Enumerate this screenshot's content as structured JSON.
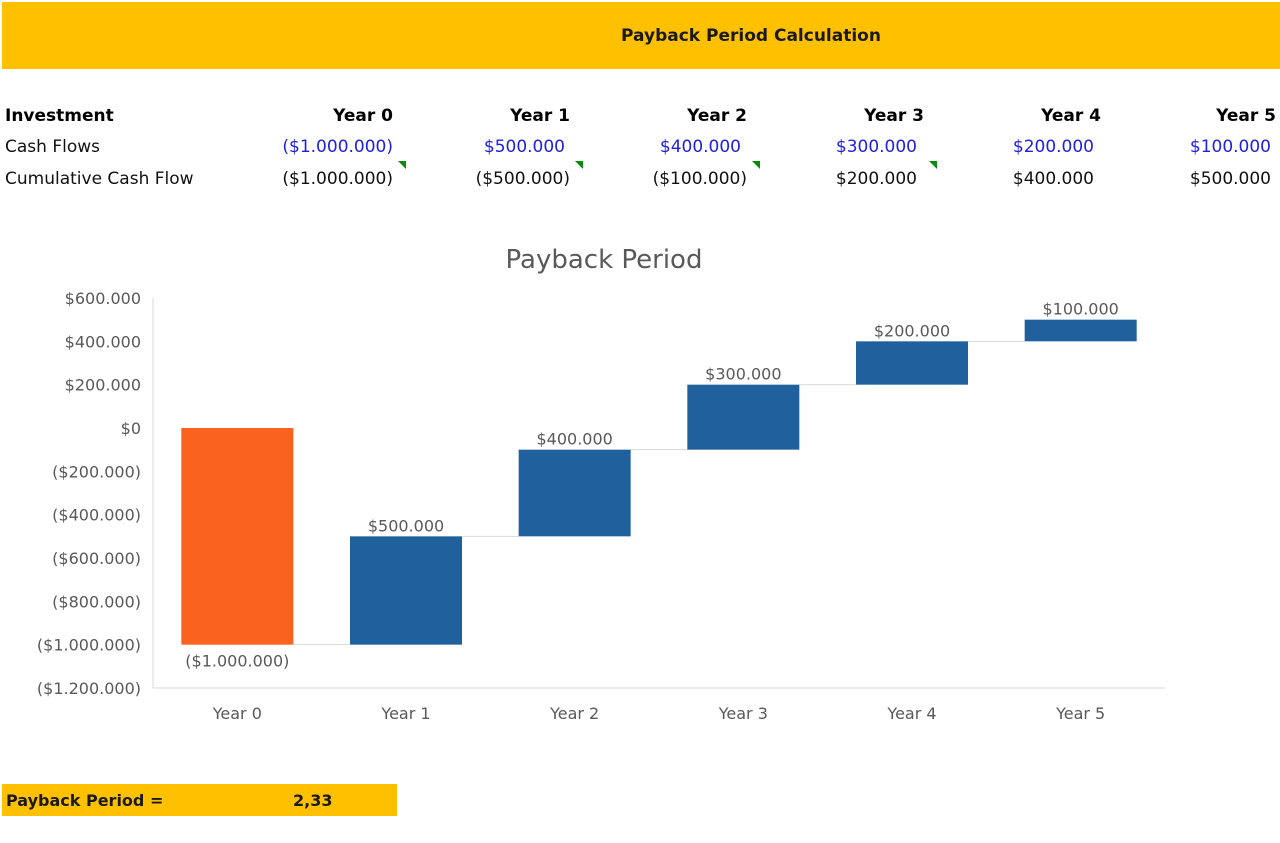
{
  "header": {
    "title": "Payback Period Calculation"
  },
  "table": {
    "corner_label": "Investment",
    "columns": [
      "Year 0",
      "Year 1",
      "Year 2",
      "Year 3",
      "Year 4",
      "Year 5"
    ],
    "rows": [
      {
        "label": "Cash Flows",
        "values": [
          "($1.000.000)",
          "$500.000",
          "$400.000",
          "$300.000",
          "$200.000",
          "$100.000"
        ]
      },
      {
        "label": "Cumulative Cash Flow",
        "values": [
          "($1.000.000)",
          "($500.000)",
          "($100.000)",
          "$200.000",
          "$400.000",
          "$500.000"
        ]
      }
    ]
  },
  "colors": {
    "banner": "#ffc000",
    "input_text": "#2020e0",
    "bar_start": "#fa6220",
    "bar_step": "#20609c",
    "flag": "#0a8a0a"
  },
  "chart_data": {
    "type": "bar",
    "subtype": "waterfall",
    "title": "Payback Period",
    "categories": [
      "Year 0",
      "Year 1",
      "Year 2",
      "Year 3",
      "Year 4",
      "Year 5"
    ],
    "values": [
      -1000000,
      500000,
      400000,
      300000,
      200000,
      100000
    ],
    "cumulative": [
      -1000000,
      -500000,
      -100000,
      200000,
      400000,
      500000
    ],
    "data_labels": [
      "($1.000.000)",
      "$500.000",
      "$400.000",
      "$300.000",
      "$200.000",
      "$100.000"
    ],
    "ylim": [
      -1200000,
      600000
    ],
    "yticks": [
      600000,
      400000,
      200000,
      0,
      -200000,
      -400000,
      -600000,
      -800000,
      -1000000,
      -1200000
    ],
    "ytick_labels": [
      "$600.000",
      "$400.000",
      "$200.000",
      "$0",
      "($200.000)",
      "($400.000)",
      "($600.000)",
      "($800.000)",
      "($1.000.000)",
      "($1.200.000)"
    ],
    "grid": false,
    "legend": "none",
    "xlabel": "",
    "ylabel": ""
  },
  "result": {
    "label": "Payback Period =",
    "value": "2,33"
  }
}
